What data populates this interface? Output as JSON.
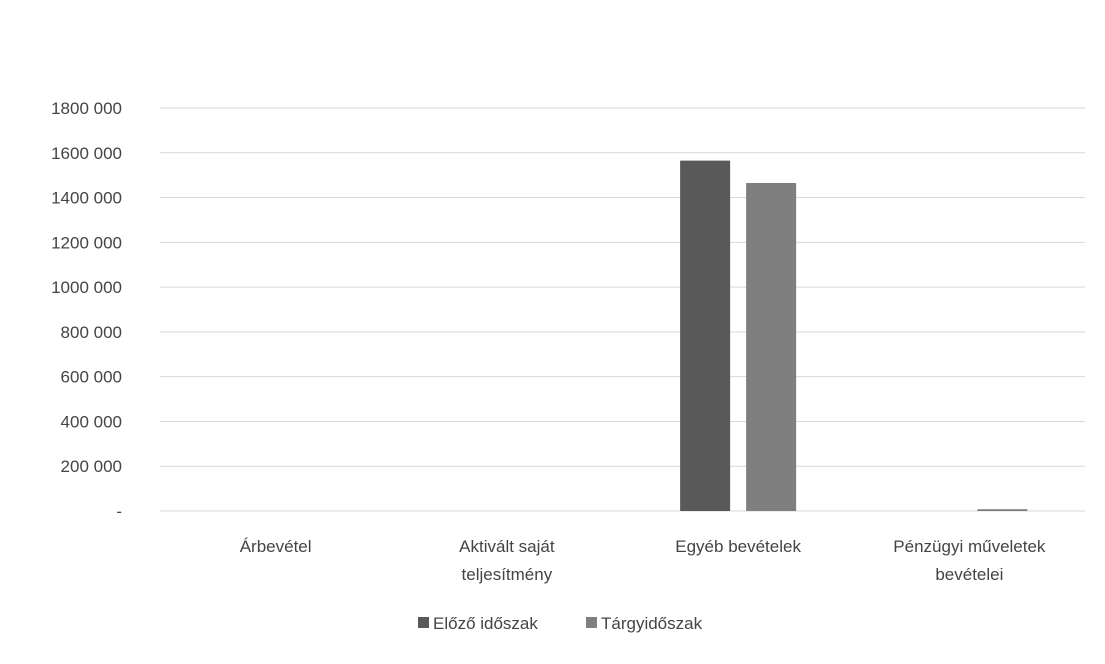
{
  "chart_data": {
    "type": "bar",
    "categories": [
      [
        "Árbevétel"
      ],
      [
        "Aktivált saját",
        "teljesítmény"
      ],
      [
        "Egyéb bevételek"
      ],
      [
        "Pénzügyi műveletek",
        "bevételei"
      ]
    ],
    "series": [
      {
        "name": "Előző időszak",
        "color": "#595959",
        "values": [
          0,
          0,
          1565000,
          0
        ]
      },
      {
        "name": "Tárgyidőszak",
        "color": "#7f7f7f",
        "values": [
          0,
          0,
          1465000,
          8000
        ]
      }
    ],
    "ylim": [
      0,
      1800000
    ],
    "yticks": [
      0,
      200000,
      400000,
      600000,
      800000,
      1000000,
      1200000,
      1400000,
      1600000,
      1800000
    ],
    "ytick_labels": [
      "-",
      "200 000",
      "400 000",
      "600 000",
      "800 000",
      "1000 000",
      "1200 000",
      "1400 000",
      "1600 000",
      "1800 000"
    ],
    "grid": true,
    "legend_position": "bottom",
    "title": "",
    "xlabel": "",
    "ylabel": ""
  }
}
